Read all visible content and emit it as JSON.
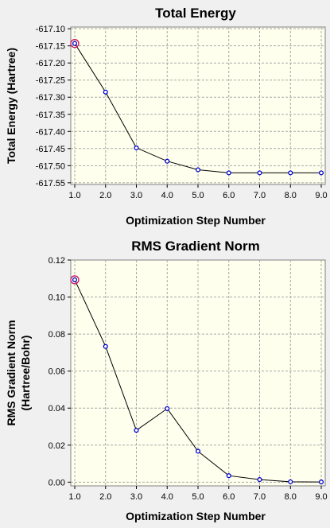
{
  "colors": {
    "background": "#f0f0f0",
    "plot_area": "#ffffee",
    "grid": "#a8a8a8",
    "line": "#000000",
    "marker": "#0000cc",
    "highlight": "#d0105a"
  },
  "chart_data": [
    {
      "type": "line",
      "title": "Total Energy",
      "xlabel": "Optimization Step Number",
      "ylabel": "Total Energy (Hartree)",
      "grid": true,
      "highlighted_point": 0,
      "x": [
        1,
        2,
        3,
        4,
        5,
        6,
        7,
        8,
        9
      ],
      "series": [
        {
          "values": [
            -617.143,
            -617.285,
            -617.448,
            -617.487,
            -617.512,
            -617.521,
            -617.521,
            -617.521,
            -617.521
          ]
        }
      ],
      "xlim": [
        1,
        9
      ],
      "ylim": [
        -617.555,
        -617.095
      ],
      "xticks": [
        1,
        2,
        3,
        4,
        5,
        6,
        7,
        8,
        9
      ],
      "xtick_labels": [
        "1.0",
        "2.0",
        "3.0",
        "4.0",
        "5.0",
        "6.0",
        "7.0",
        "8.0",
        "9.0"
      ],
      "yticks": [
        -617.1,
        -617.15,
        -617.2,
        -617.25,
        -617.3,
        -617.35,
        -617.4,
        -617.45,
        -617.5,
        -617.55
      ],
      "ytick_labels": [
        "-617.10",
        "-617.15",
        "-617.20",
        "-617.25",
        "-617.30",
        "-617.35",
        "-617.40",
        "-617.45",
        "-617.50",
        "-617.55"
      ]
    },
    {
      "type": "line",
      "title": "RMS Gradient Norm",
      "xlabel": "Optimization Step Number",
      "ylabel": "RMS Gradient Norm",
      "ylabel2": "(Hartree/Bohr)",
      "grid": true,
      "highlighted_point": 0,
      "x": [
        1,
        2,
        3,
        4,
        5,
        6,
        7,
        8,
        9
      ],
      "series": [
        {
          "values": [
            0.1093,
            0.0733,
            0.028,
            0.0397,
            0.0167,
            0.0035,
            0.0014,
            0.0002,
            0.0001
          ]
        }
      ],
      "xlim": [
        1,
        9
      ],
      "ylim": [
        -0.002,
        0.12
      ],
      "xticks": [
        1,
        2,
        3,
        4,
        5,
        6,
        7,
        8,
        9
      ],
      "xtick_labels": [
        "1.0",
        "2.0",
        "3.0",
        "4.0",
        "5.0",
        "6.0",
        "7.0",
        "8.0",
        "9.0"
      ],
      "yticks": [
        0.0,
        0.02,
        0.04,
        0.06,
        0.08,
        0.1,
        0.12
      ],
      "ytick_labels": [
        "0.00",
        "0.02",
        "0.04",
        "0.06",
        "0.08",
        "0.10",
        "0.12"
      ]
    }
  ]
}
